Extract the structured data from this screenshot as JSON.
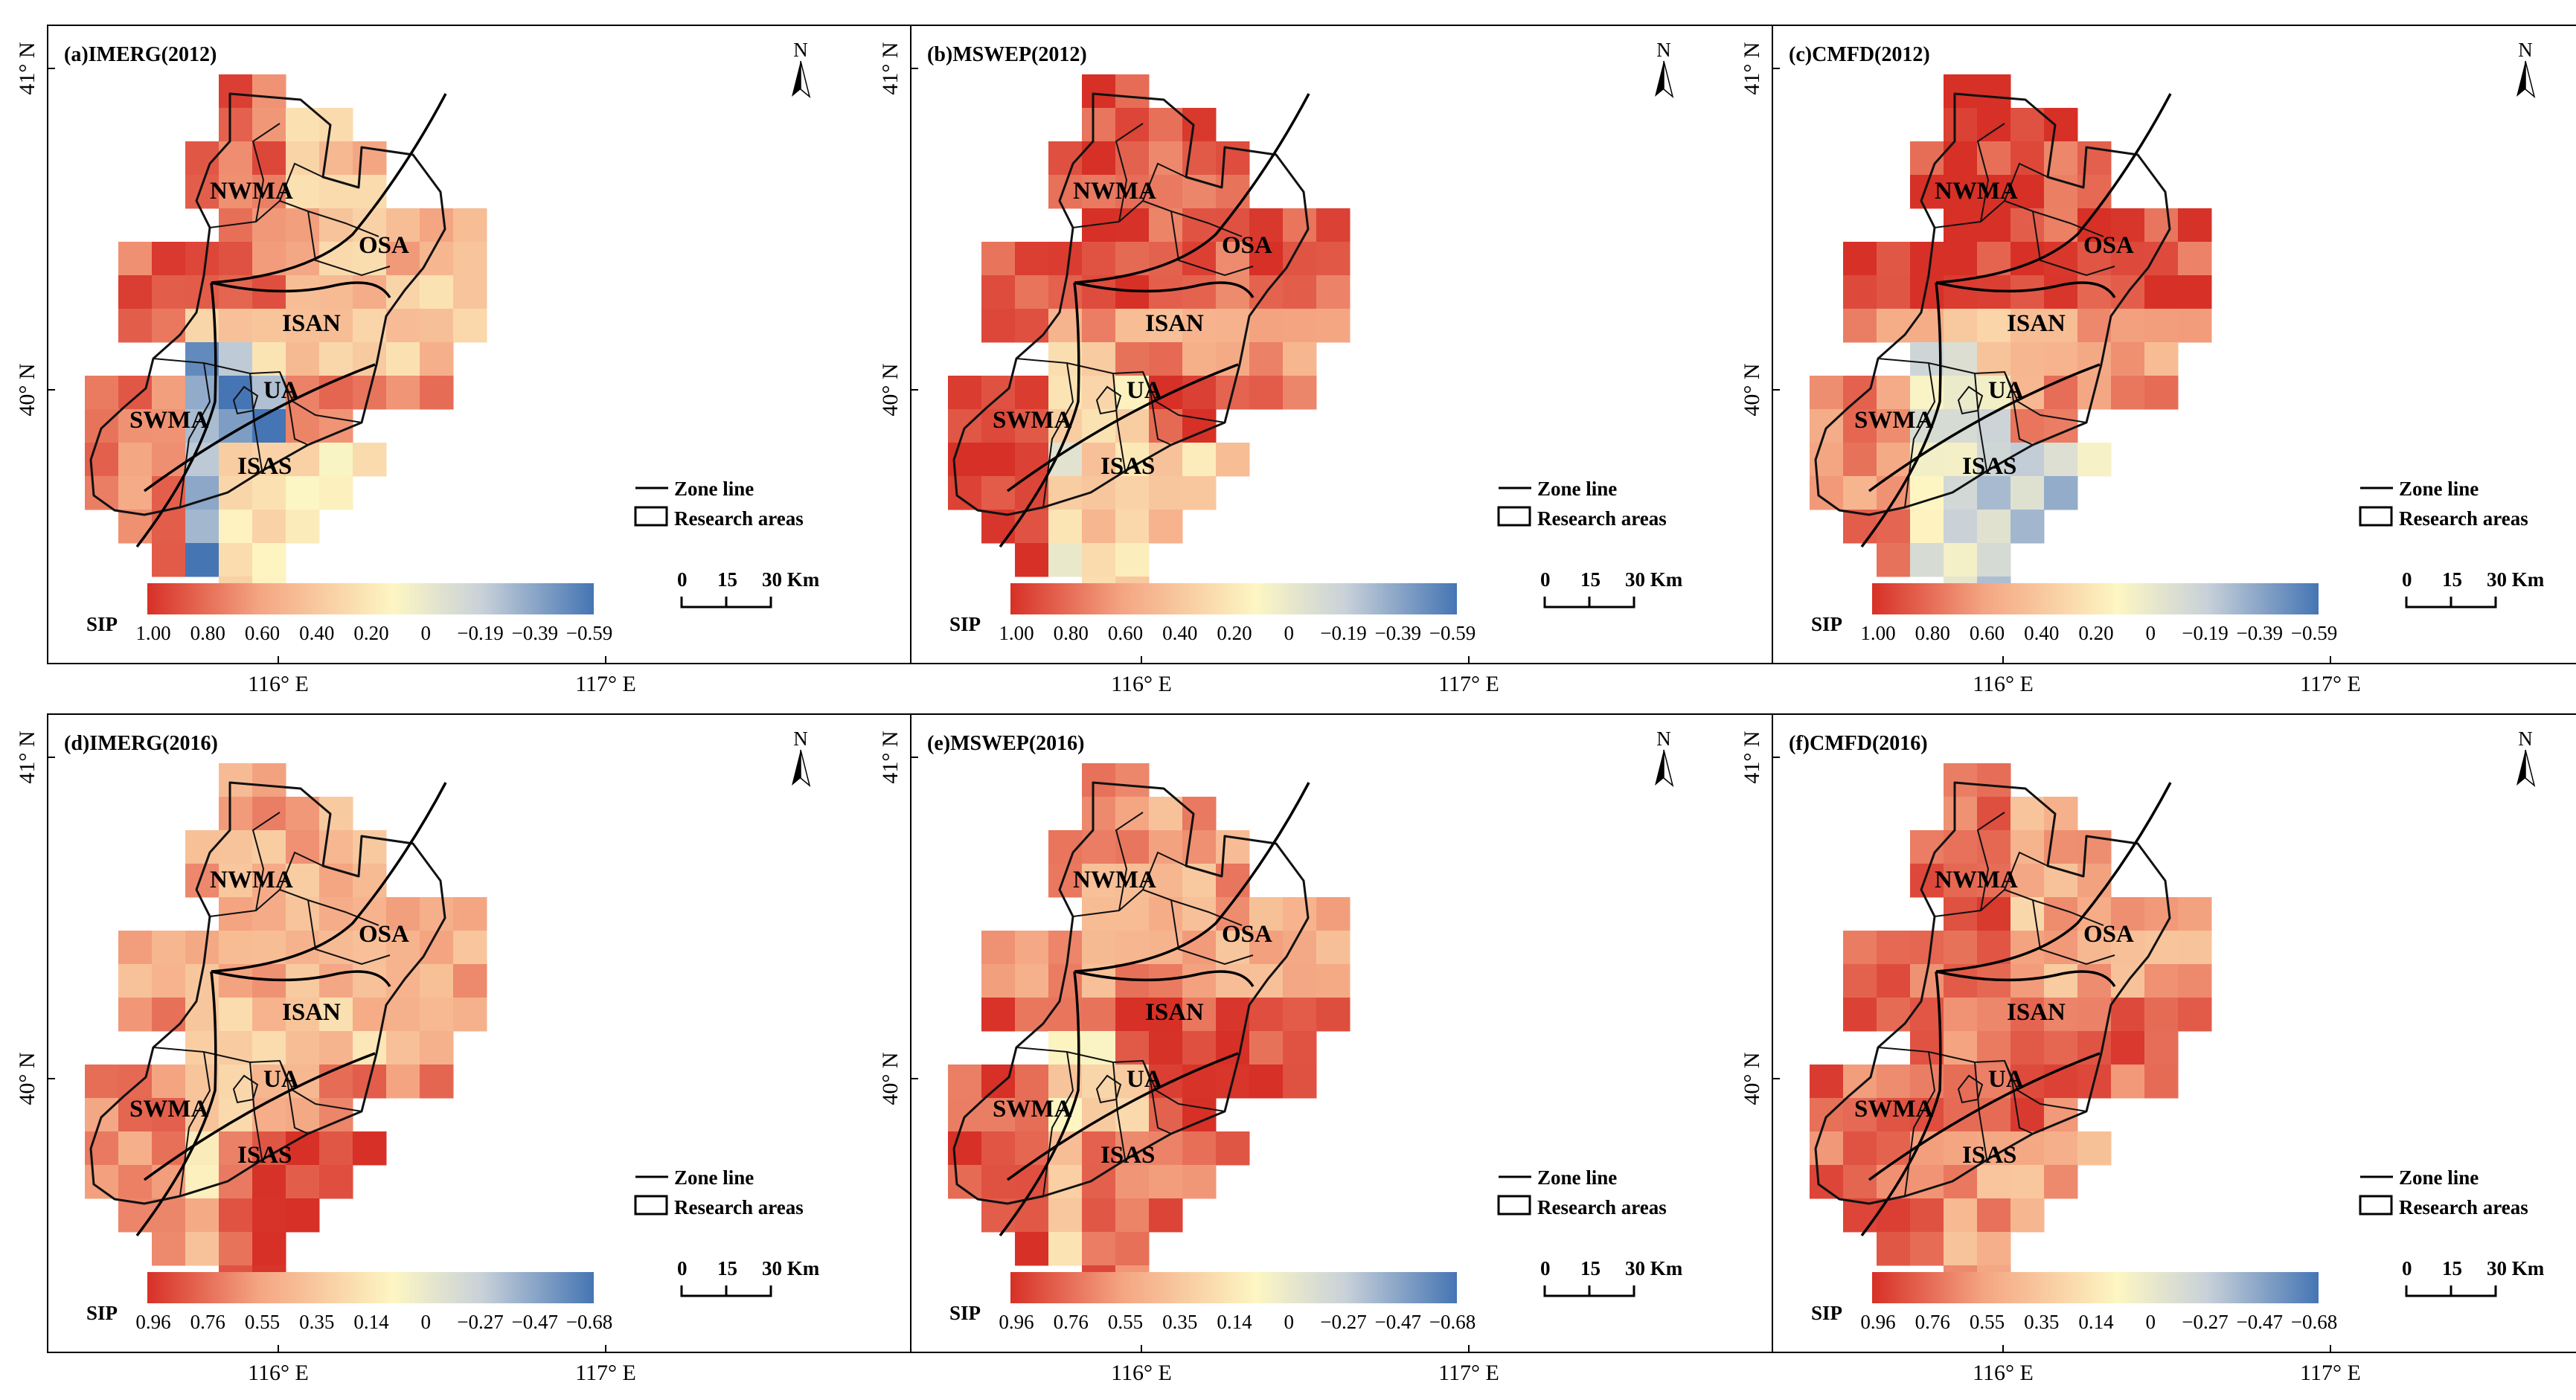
{
  "figure": {
    "axis_labels": {
      "lon_left": "116° E",
      "lon_right": "117° E",
      "lat_top": "41° N",
      "lat_mid": "40° N"
    },
    "north_label": "N",
    "colors": {
      "strong_pos": "#d73027",
      "mid_pos": "#f4a582",
      "neutral": "#fdf6c3",
      "weak_neg": "#c8d1d9",
      "strong_neg": "#4575b4"
    },
    "legend": {
      "zone_line": "Zone line",
      "research_areas": "Research areas"
    },
    "scale_bar": {
      "labels": [
        "0",
        "15",
        "30 Km"
      ]
    },
    "colorbar_label": "SIP",
    "regions": [
      "NWMA",
      "OSA",
      "ISAN",
      "UA",
      "SWMA",
      "ISAS"
    ]
  },
  "panels": [
    {
      "title": "(a)IMERG(2012)",
      "ticks": [
        "1.00",
        "0.80",
        "0.60",
        "0.40",
        "0.20",
        "0",
        "−0.19",
        "−0.39",
        "−0.59"
      ],
      "region_sip": {
        "NWMA": 0.75,
        "OSA": 0.35,
        "ISAN": 0.3,
        "UA": -0.45,
        "SWMA": 0.65,
        "ISAS": 0.1
      }
    },
    {
      "title": "(b)MSWEP(2012)",
      "ticks": [
        "1.00",
        "0.80",
        "0.60",
        "0.40",
        "0.20",
        "0",
        "−0.19",
        "−0.39",
        "−0.59"
      ],
      "region_sip": {
        "NWMA": 0.9,
        "OSA": 0.8,
        "ISAN": 0.55,
        "UA": 0.05,
        "SWMA": 0.85,
        "ISAS": 0.25
      }
    },
    {
      "title": "(c)CMFD(2012)",
      "ticks": [
        "1.00",
        "0.80",
        "0.60",
        "0.40",
        "0.20",
        "0",
        "−0.19",
        "−0.39",
        "−0.59"
      ],
      "region_sip": {
        "NWMA": 0.95,
        "OSA": 0.85,
        "ISAN": 0.4,
        "UA": -0.1,
        "SWMA": 0.6,
        "ISAS": -0.2
      }
    },
    {
      "title": "(d)IMERG(2016)",
      "ticks": [
        "0.96",
        "0.76",
        "0.55",
        "0.35",
        "0.14",
        "0",
        "−0.27",
        "−0.47",
        "−0.68"
      ],
      "region_sip": {
        "NWMA": 0.45,
        "OSA": 0.4,
        "ISAN": 0.3,
        "UA": 0.25,
        "SWMA": 0.6,
        "ISAS": 0.85
      }
    },
    {
      "title": "(e)MSWEP(2016)",
      "ticks": [
        "0.96",
        "0.76",
        "0.55",
        "0.35",
        "0.14",
        "0",
        "−0.27",
        "−0.47",
        "−0.68"
      ],
      "region_sip": {
        "NWMA": 0.55,
        "OSA": 0.5,
        "ISAN": 0.85,
        "UA": 0.2,
        "SWMA": 0.85,
        "ISAS": 0.75
      }
    },
    {
      "title": "(f)CMFD(2016)",
      "ticks": [
        "0.96",
        "0.76",
        "0.55",
        "0.35",
        "0.14",
        "0",
        "−0.27",
        "−0.47",
        "−0.68"
      ],
      "region_sip": {
        "NWMA": 0.8,
        "OSA": 0.4,
        "ISAN": 0.8,
        "UA": 0.7,
        "SWMA": 0.75,
        "ISAS": 0.5
      }
    }
  ]
}
